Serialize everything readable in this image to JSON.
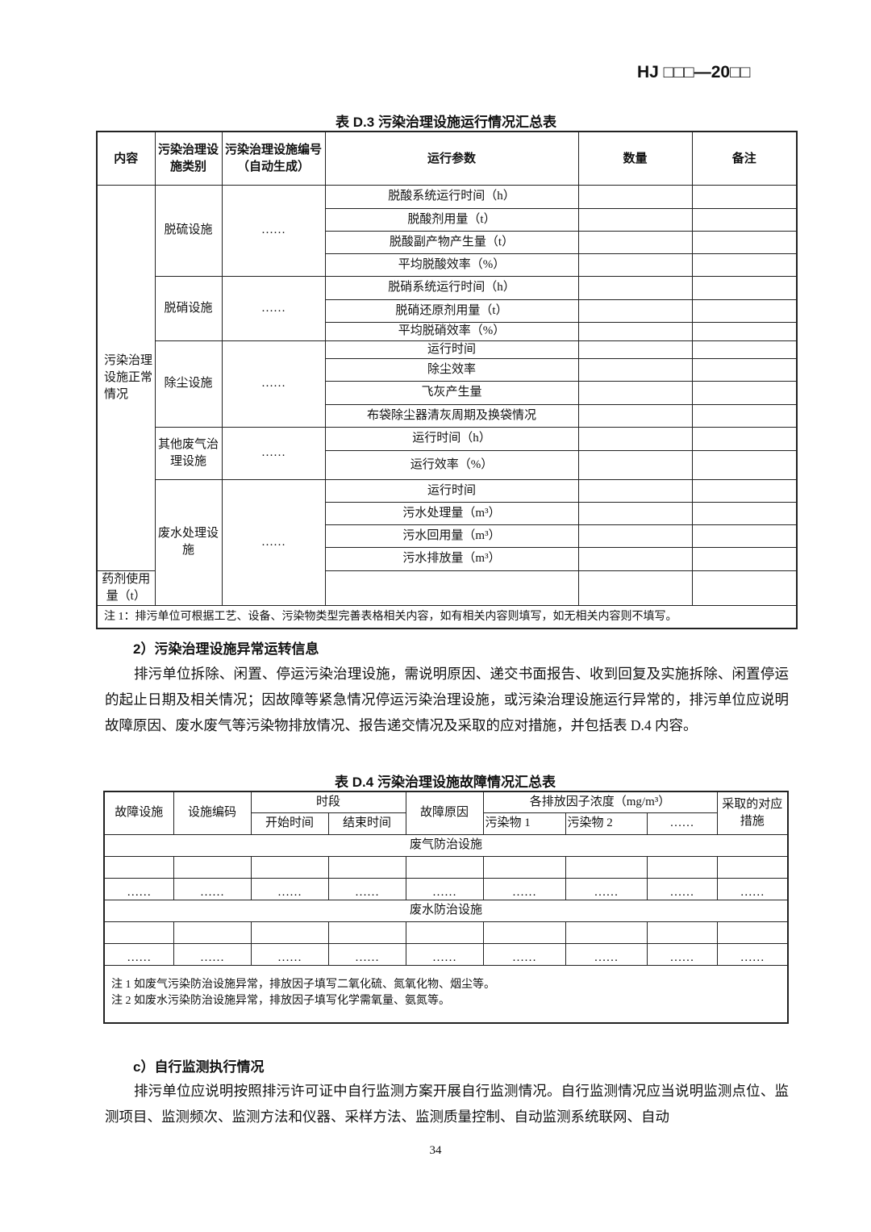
{
  "header": "HJ □□□—20□□",
  "table_d3": {
    "caption": "表 D.3 污染治理设施运行情况汇总表",
    "headers": [
      "内容",
      "污染治理设施类别",
      "污染治理设施编号（自动生成）",
      "运行参数",
      "数量",
      "备注"
    ],
    "content": "污染治理设施正常情况",
    "groups": [
      {
        "type": "脱硫设施",
        "id": "……",
        "params": [
          "脱酸系统运行时间（h）",
          "脱酸剂用量（t）",
          "脱酸副产物产生量（t）",
          "平均脱酸效率（%）"
        ]
      },
      {
        "type": "脱硝设施",
        "id": "……",
        "params": [
          "脱硝系统运行时间（h）",
          "脱硝还原剂用量（t）",
          "平均脱硝效率（%）"
        ]
      },
      {
        "type": "除尘设施",
        "id": "……",
        "params": [
          "运行时间",
          "除尘效率",
          "飞灰产生量",
          "布袋除尘器清灰周期及换袋情况"
        ]
      },
      {
        "type": "其他废气治理设施",
        "id": "……",
        "params": [
          "运行时间（h）",
          "运行效率（%）"
        ]
      },
      {
        "type": "废水处理设施",
        "id": "……",
        "params": [
          "运行时间",
          "污水处理量（m³）",
          "污水回用量（m³）",
          "污水排放量（m³）",
          "药剂使用量（t）"
        ]
      }
    ],
    "note": "注 1：排污单位可根据工艺、设备、污染物类型完善表格相关内容，如有相关内容则填写，如无相关内容则不填写。"
  },
  "section2": {
    "title": "2）污染治理设施异常运转信息",
    "text": "排污单位拆除、闲置、停运污染治理设施，需说明原因、递交书面报告、收到回复及实施拆除、闲置停运的起止日期及相关情况；因故障等紧急情况停运污染治理设施，或污染治理设施运行异常的，排污单位应说明故障原因、废水废气等污染物排放情况、报告递交情况及采取的应对措施，并包括表 D.4 内容。"
  },
  "table_d4": {
    "caption": "表 D.4  污染治理设施故障情况汇总表",
    "h_fault": "故障设施",
    "h_code": "设施编码",
    "h_period": "时段",
    "h_start": "开始时间",
    "h_end": "结束时间",
    "h_reason": "故障原因",
    "h_conc": "各排放因子浓度（mg/m³）",
    "h_p1": "污染物 1",
    "h_p2": "污染物 2",
    "h_more": "……",
    "h_measure": "采取的对应措施",
    "sec_gas": "废气防治设施",
    "sec_water": "废水防治设施",
    "ellipsis": "……",
    "note1": "注 1 如废气污染防治设施异常，排放因子填写二氧化硫、氮氧化物、烟尘等。",
    "note2": "注 2 如废水污染防治设施异常，排放因子填写化学需氧量、氨氮等。"
  },
  "section_c": {
    "title": "c）自行监测执行情况",
    "text": "排污单位应说明按照排污许可证中自行监测方案开展自行监测情况。自行监测情况应当说明监测点位、监测项目、监测频次、监测方法和仪器、采样方法、监测质量控制、自动监测系统联网、自动"
  },
  "page_number": "34"
}
